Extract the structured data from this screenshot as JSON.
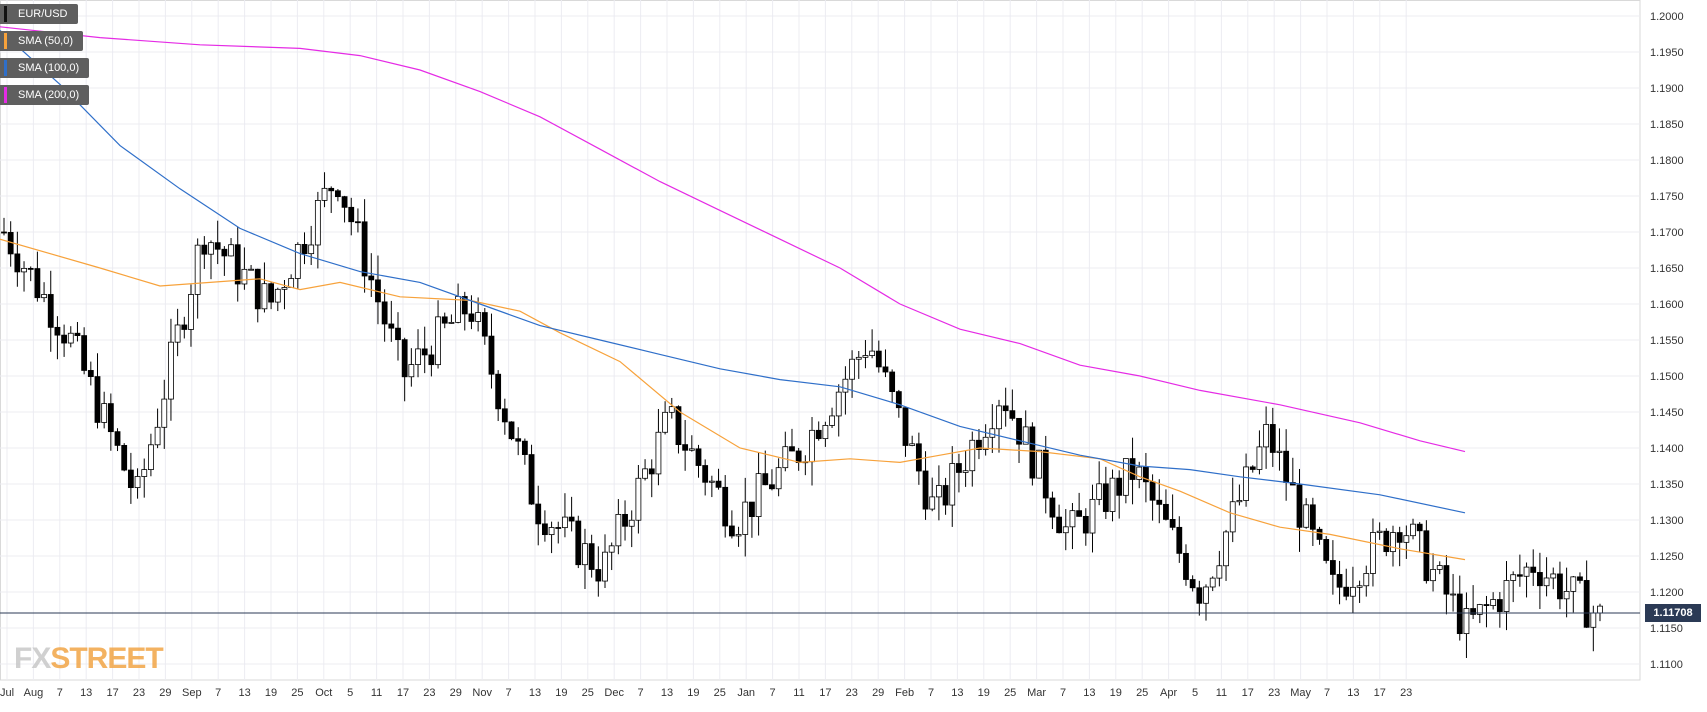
{
  "legend": [
    {
      "label": "EUR/USD",
      "color": "#111111"
    },
    {
      "label": "SMA (50,0)",
      "color": "#f7a23b"
    },
    {
      "label": "SMA (100,0)",
      "color": "#2f6fc9"
    },
    {
      "label": "SMA (200,0)",
      "color": "#e52be5"
    }
  ],
  "logo": {
    "fx": "FX",
    "street": "STREET"
  },
  "last_price_label": "1.11708",
  "chart_data": {
    "type": "candlestick",
    "symbol": "EUR/USD",
    "y_axis_ticks": [
      "1.2000",
      "1.1950",
      "1.1900",
      "1.1850",
      "1.1800",
      "1.1750",
      "1.1700",
      "1.1650",
      "1.1600",
      "1.1550",
      "1.1500",
      "1.1450",
      "1.1400",
      "1.1350",
      "1.1300",
      "1.1250",
      "1.1200",
      "1.1150",
      "1.1100"
    ],
    "ylim": [
      1.1075,
      1.2025
    ],
    "x_axis_ticks": [
      "Jul",
      "Aug",
      "7",
      "13",
      "17",
      "23",
      "29",
      "Sep",
      "7",
      "13",
      "19",
      "25",
      "Oct",
      "5",
      "11",
      "17",
      "23",
      "29",
      "Nov",
      "7",
      "13",
      "19",
      "25",
      "Dec",
      "7",
      "13",
      "19",
      "25",
      "Jan",
      "7",
      "11",
      "17",
      "23",
      "29",
      "Feb",
      "7",
      "13",
      "19",
      "25",
      "Mar",
      "7",
      "13",
      "19",
      "25",
      "Apr",
      "5",
      "11",
      "17",
      "23",
      "May",
      "7",
      "13",
      "17",
      "23"
    ],
    "last_price": 1.11708,
    "ohlc_waypoints": [
      {
        "date": "Jul 2",
        "close": 1.17
      },
      {
        "date": "Aug 10",
        "close": 1.155
      },
      {
        "date": "Aug 15",
        "close": 1.133
      },
      {
        "date": "Aug 28",
        "close": 1.17
      },
      {
        "date": "Sep 5",
        "close": 1.16
      },
      {
        "date": "Sep 24",
        "close": 1.178
      },
      {
        "date": "Oct 9",
        "close": 1.15
      },
      {
        "date": "Oct 15",
        "close": 1.16
      },
      {
        "date": "Oct 31",
        "close": 1.132
      },
      {
        "date": "Nov 12",
        "close": 1.123
      },
      {
        "date": "Nov 20",
        "close": 1.144
      },
      {
        "date": "Dec 12",
        "close": 1.13
      },
      {
        "date": "Jan 3",
        "close": 1.14
      },
      {
        "date": "Jan 10",
        "close": 1.155
      },
      {
        "date": "Jan 24",
        "close": 1.131
      },
      {
        "date": "Jan 31",
        "close": 1.148
      },
      {
        "date": "Feb 14",
        "close": 1.128
      },
      {
        "date": "Feb 27",
        "close": 1.137
      },
      {
        "date": "Mar 7",
        "close": 1.12
      },
      {
        "date": "Mar 20",
        "close": 1.142
      },
      {
        "date": "Apr 2",
        "close": 1.12
      },
      {
        "date": "Apr 17",
        "close": 1.13
      },
      {
        "date": "Apr 26",
        "close": 1.115
      },
      {
        "date": "May 13",
        "close": 1.124
      },
      {
        "date": "May 21",
        "close": 1.1165
      }
    ],
    "series": [
      {
        "name": "SMA (50,0)",
        "color": "#f7a23b",
        "values": [
          [
            0,
            1.169
          ],
          [
            100,
            1.165
          ],
          [
            160,
            1.1625
          ],
          [
            260,
            1.1635
          ],
          [
            300,
            1.162
          ],
          [
            340,
            1.163
          ],
          [
            400,
            1.161
          ],
          [
            470,
            1.1605
          ],
          [
            520,
            1.159
          ],
          [
            560,
            1.156
          ],
          [
            620,
            1.152
          ],
          [
            680,
            1.145
          ],
          [
            740,
            1.14
          ],
          [
            800,
            1.138
          ],
          [
            850,
            1.1385
          ],
          [
            900,
            1.138
          ],
          [
            940,
            1.139
          ],
          [
            980,
            1.14
          ],
          [
            1040,
            1.1395
          ],
          [
            1100,
            1.1385
          ],
          [
            1140,
            1.136
          ],
          [
            1180,
            1.134
          ],
          [
            1230,
            1.131
          ],
          [
            1280,
            1.129
          ],
          [
            1330,
            1.128
          ],
          [
            1400,
            1.126
          ],
          [
            1465,
            1.1245
          ]
        ]
      },
      {
        "name": "SMA (100,0)",
        "color": "#2f6fc9",
        "values": [
          [
            0,
            1.198
          ],
          [
            60,
            1.1905
          ],
          [
            120,
            1.182
          ],
          [
            180,
            1.176
          ],
          [
            240,
            1.1705
          ],
          [
            300,
            1.167
          ],
          [
            360,
            1.1645
          ],
          [
            420,
            1.163
          ],
          [
            480,
            1.16
          ],
          [
            540,
            1.157
          ],
          [
            600,
            1.155
          ],
          [
            660,
            1.153
          ],
          [
            720,
            1.151
          ],
          [
            780,
            1.1495
          ],
          [
            840,
            1.1485
          ],
          [
            900,
            1.146
          ],
          [
            960,
            1.143
          ],
          [
            1020,
            1.141
          ],
          [
            1080,
            1.139
          ],
          [
            1140,
            1.1375
          ],
          [
            1190,
            1.137
          ],
          [
            1240,
            1.136
          ],
          [
            1300,
            1.135
          ],
          [
            1380,
            1.1335
          ],
          [
            1465,
            1.131
          ]
        ]
      },
      {
        "name": "SMA (200,0)",
        "color": "#e52be5",
        "values": [
          [
            0,
            1.1985
          ],
          [
            100,
            1.197
          ],
          [
            200,
            1.196
          ],
          [
            300,
            1.1955
          ],
          [
            360,
            1.1945
          ],
          [
            420,
            1.1925
          ],
          [
            480,
            1.1895
          ],
          [
            540,
            1.186
          ],
          [
            600,
            1.1815
          ],
          [
            660,
            1.177
          ],
          [
            720,
            1.173
          ],
          [
            780,
            1.169
          ],
          [
            840,
            1.165
          ],
          [
            900,
            1.16
          ],
          [
            960,
            1.1565
          ],
          [
            1020,
            1.1545
          ],
          [
            1080,
            1.1515
          ],
          [
            1140,
            1.15
          ],
          [
            1200,
            1.148
          ],
          [
            1280,
            1.146
          ],
          [
            1360,
            1.1435
          ],
          [
            1420,
            1.141
          ],
          [
            1465,
            1.1395
          ]
        ]
      }
    ]
  }
}
